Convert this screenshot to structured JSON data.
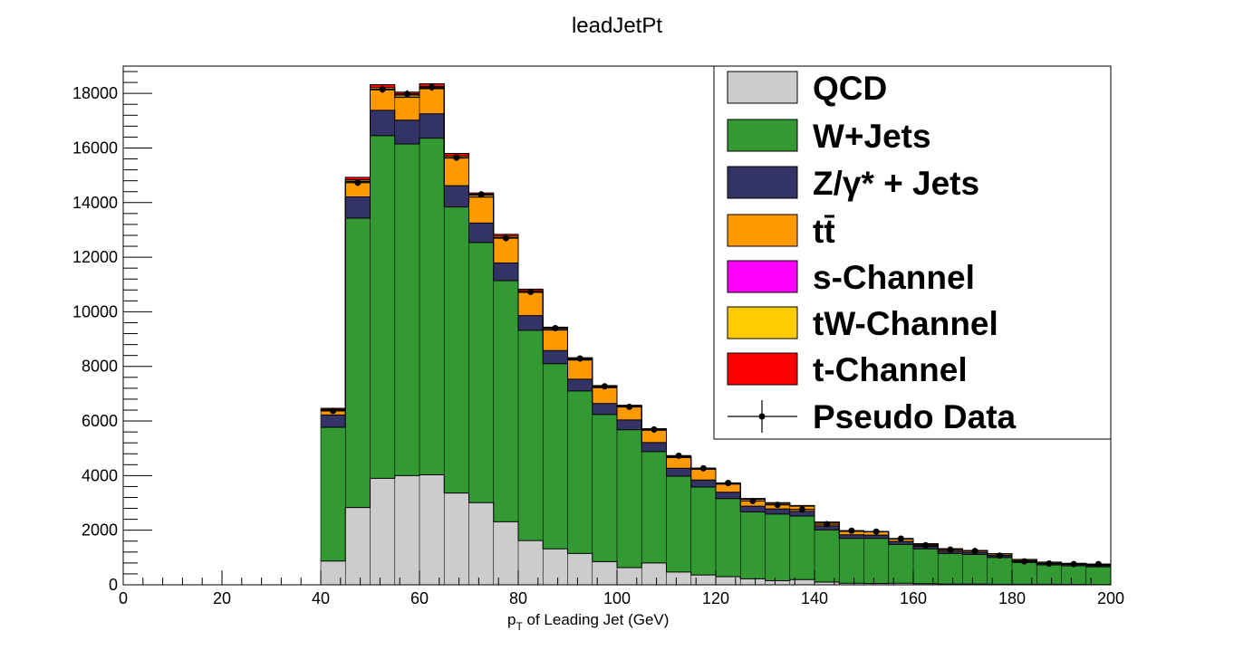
{
  "chart_data": {
    "type": "bar",
    "stacked": true,
    "title": "leadJetPt",
    "xlabel": {
      "main": "p",
      "sub": "T",
      "rest": " of Leading Jet (GeV)"
    },
    "ylabel": "",
    "xlim": [
      0,
      200
    ],
    "ylim": [
      0,
      19000
    ],
    "bin_width": 5,
    "x_ticks": [
      0,
      20,
      40,
      60,
      80,
      100,
      120,
      140,
      160,
      180,
      200
    ],
    "y_ticks": [
      0,
      2000,
      4000,
      6000,
      8000,
      10000,
      12000,
      14000,
      16000,
      18000
    ],
    "grid": false,
    "legend_position": "top-right",
    "bin_low_edges": [
      40,
      45,
      50,
      55,
      60,
      65,
      70,
      75,
      80,
      85,
      90,
      95,
      100,
      105,
      110,
      115,
      120,
      125,
      130,
      135,
      140,
      145,
      150,
      155,
      160,
      165,
      170,
      175,
      180,
      185,
      190,
      195
    ],
    "series": [
      {
        "name": "QCD",
        "color": "#cccccc",
        "values": [
          870,
          2830,
          3900,
          4000,
          4030,
          3360,
          3010,
          2310,
          1620,
          1320,
          1150,
          850,
          630,
          800,
          470,
          360,
          300,
          220,
          150,
          190,
          100,
          60,
          50,
          60,
          40,
          30,
          30,
          20,
          20,
          20,
          15,
          10
        ]
      },
      {
        "name": "W+Jets",
        "color": "#339933",
        "values": [
          4900,
          10600,
          12550,
          12150,
          12330,
          10480,
          9530,
          8830,
          7700,
          6780,
          5950,
          5390,
          5050,
          4080,
          3510,
          3220,
          2860,
          2450,
          2440,
          2330,
          1910,
          1640,
          1650,
          1420,
          1280,
          1120,
          1080,
          980,
          800,
          710,
          680,
          650
        ]
      },
      {
        "name": "Z/γ* + Jets",
        "color": "#333366",
        "values": [
          450,
          780,
          930,
          870,
          890,
          780,
          710,
          650,
          540,
          480,
          430,
          400,
          360,
          330,
          290,
          260,
          230,
          210,
          190,
          170,
          150,
          130,
          120,
          110,
          95,
          85,
          75,
          70,
          60,
          55,
          50,
          45
        ]
      },
      {
        "name": "tt̄",
        "color": "#ff9900",
        "values": [
          180,
          560,
          750,
          830,
          920,
          1010,
          950,
          910,
          850,
          750,
          700,
          580,
          470,
          450,
          390,
          390,
          300,
          250,
          200,
          190,
          120,
          130,
          120,
          90,
          80,
          75,
          65,
          60,
          45,
          40,
          35,
          30
        ]
      },
      {
        "name": "s-Channel",
        "color": "#ff00ff",
        "values": [
          5,
          15,
          20,
          20,
          20,
          20,
          18,
          16,
          14,
          12,
          10,
          9,
          8,
          7,
          6,
          5,
          5,
          4,
          4,
          3,
          3,
          3,
          2,
          2,
          2,
          2,
          2,
          1,
          1,
          1,
          1,
          1
        ]
      },
      {
        "name": "tW-Channel",
        "color": "#ffcc00",
        "values": [
          20,
          50,
          60,
          65,
          65,
          60,
          55,
          50,
          45,
          40,
          35,
          30,
          25,
          22,
          20,
          18,
          15,
          12,
          10,
          9,
          8,
          7,
          6,
          5,
          5,
          4,
          4,
          3,
          3,
          3,
          2,
          2
        ]
      },
      {
        "name": "t-Channel",
        "color": "#ff0000",
        "values": [
          40,
          90,
          110,
          110,
          100,
          90,
          80,
          70,
          60,
          55,
          45,
          40,
          35,
          30,
          28,
          25,
          20,
          18,
          15,
          13,
          11,
          10,
          9,
          8,
          7,
          6,
          5,
          5,
          4,
          4,
          3,
          3
        ]
      }
    ],
    "data_points": {
      "name": "Pseudo Data",
      "values": [
        6370,
        14730,
        18150,
        17980,
        18230,
        15650,
        14300,
        12700,
        10730,
        9400,
        8290,
        7270,
        6520,
        5690,
        4730,
        4270,
        3730,
        3070,
        2930,
        2760,
        2220,
        1980,
        1950,
        1690,
        1450,
        1290,
        1240,
        1070,
        860,
        780,
        760,
        760
      ],
      "errors_from_sqrt": true
    }
  }
}
